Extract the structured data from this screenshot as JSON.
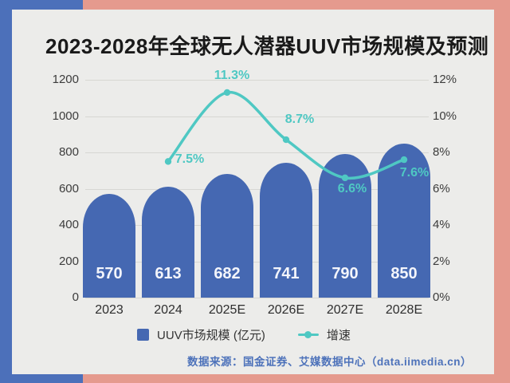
{
  "page": {
    "title": "2023-2028年全球无人潜器UUV市场规模及预测",
    "source": "数据来源：国金证券、艾媒数据中心（data.iimedia.cn）"
  },
  "colors": {
    "bar": "#4568b2",
    "line": "#4fc8c3",
    "band_blue": "#4c70ba",
    "background_salmon": "#e59a8e",
    "card": "#ececea",
    "bar_value_text": "#f3f5fb"
  },
  "legend": [
    {
      "label": "UUV市场规模 (亿元)",
      "swatch": "bar-square"
    },
    {
      "label": "增速",
      "swatch": "line-dot"
    }
  ],
  "chart_data": {
    "type": "bar",
    "subtype": "bar+line-combo",
    "title": "2023-2028年全球无人潜器UUV市场规模及预测",
    "categories": [
      "2023",
      "2024",
      "2025E",
      "2026E",
      "2027E",
      "2028E"
    ],
    "series": [
      {
        "name": "UUV市场规模 (亿元)",
        "type": "bar",
        "axis": "left",
        "values": [
          570,
          613,
          682,
          741,
          790,
          850
        ]
      },
      {
        "name": "增速",
        "type": "line",
        "axis": "right",
        "unit": "%",
        "values": [
          null,
          7.5,
          11.3,
          8.7,
          6.6,
          7.6
        ],
        "point_labels": [
          null,
          "7.5%",
          "11.3%",
          "8.7%",
          "6.6%",
          "7.6%"
        ]
      }
    ],
    "left_axis": {
      "min": 0,
      "max": 1200,
      "step": 200,
      "ticks": [
        "0",
        "200",
        "400",
        "600",
        "800",
        "1000",
        "1200"
      ]
    },
    "right_axis": {
      "min": 0,
      "max": 12,
      "step": 2,
      "ticks": [
        "0%",
        "2%",
        "4%",
        "6%",
        "8%",
        "10%",
        "12%"
      ]
    },
    "grid": true,
    "legend_position": "bottom"
  }
}
